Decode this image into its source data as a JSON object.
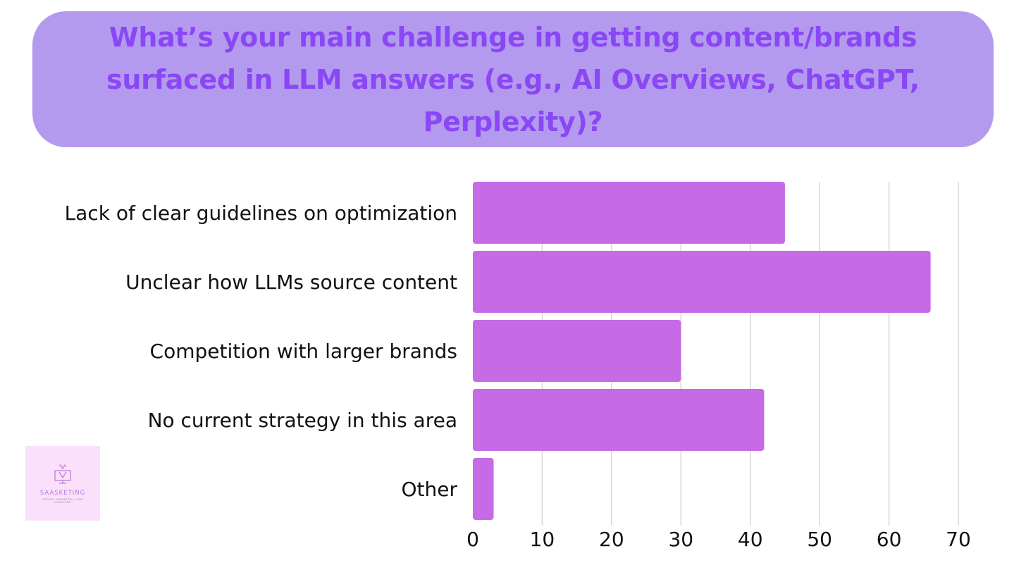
{
  "title": "What’s your main challenge in getting content/brands surfaced in LLM answers (e.g., AI Overviews, ChatGPT, Perplexity)?",
  "colors": {
    "title_background": "#b39aee",
    "title_text": "#8a47f5",
    "bar": "#c76ae6",
    "gridline": "#d6d6d6",
    "logo_background": "#fbe0fb",
    "logo_accent": "#b47ad6"
  },
  "logo": {
    "name": "SAASKETING",
    "tagline": "ORGANIC MARKETING + PAID MARKETING"
  },
  "chart_data": {
    "type": "bar",
    "orientation": "horizontal",
    "title": "What’s your main challenge in getting content/brands surfaced in LLM answers (e.g., AI Overviews, ChatGPT, Perplexity)?",
    "xlabel": "",
    "ylabel": "",
    "categories": [
      "Lack of clear guidelines on optimization",
      "Unclear how LLMs source content",
      "Competition with larger brands",
      "No current strategy in this area",
      "Other"
    ],
    "values": [
      45,
      66,
      30,
      42,
      3
    ],
    "xlim": [
      0,
      70
    ],
    "xticks": [
      0,
      10,
      20,
      30,
      40,
      50,
      60,
      70
    ],
    "grid": true,
    "legend": "none"
  }
}
